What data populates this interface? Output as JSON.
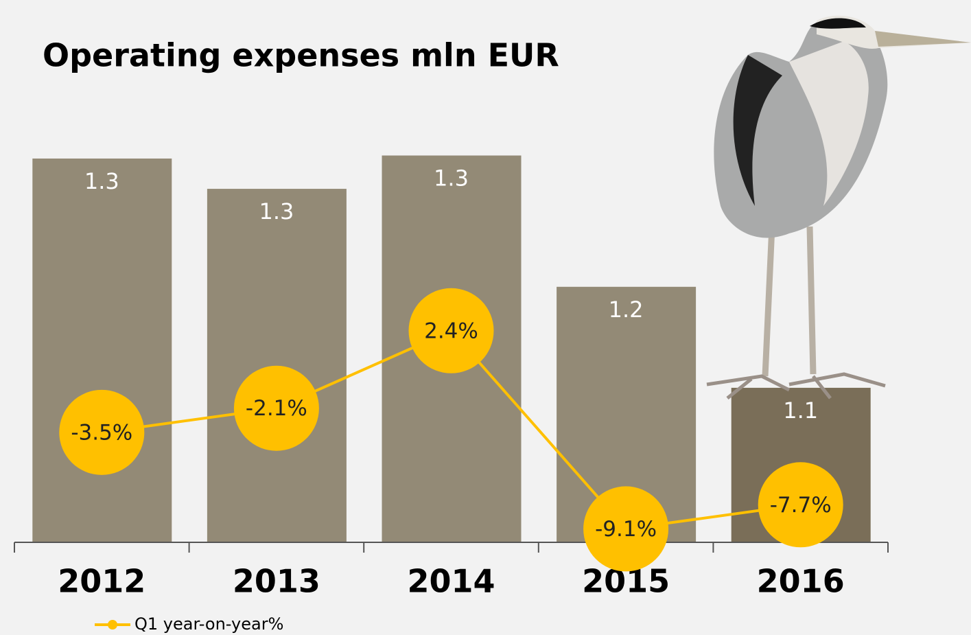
{
  "chart_data": {
    "type": "bar",
    "title": "Operating expenses mln EUR",
    "categories": [
      "2012",
      "2013",
      "2014",
      "2015",
      "2016"
    ],
    "values": [
      1.327,
      1.297,
      1.33,
      1.2,
      1.1
    ],
    "value_labels": [
      "1.3",
      "1.3",
      "1.3",
      "1.2",
      "1.1"
    ],
    "colors": [
      "#938a76",
      "#938a76",
      "#938a76",
      "#938a76",
      "#7a6e58"
    ],
    "ylim": [
      0.947,
      1.416
    ],
    "y2lim": [
      -9.88,
      17.61
    ],
    "series": [
      {
        "type": "line",
        "name": "Q1 year-on-year%",
        "color": "#ffc000",
        "axis": "y2",
        "values": [
          -3.5,
          -2.1,
          2.4,
          -9.1,
          -7.7
        ],
        "value_labels": [
          "-3.5%",
          "-2.1%",
          "2.4%",
          "-9.1%",
          "-7.7%"
        ]
      }
    ],
    "legend": "bottom-left"
  }
}
